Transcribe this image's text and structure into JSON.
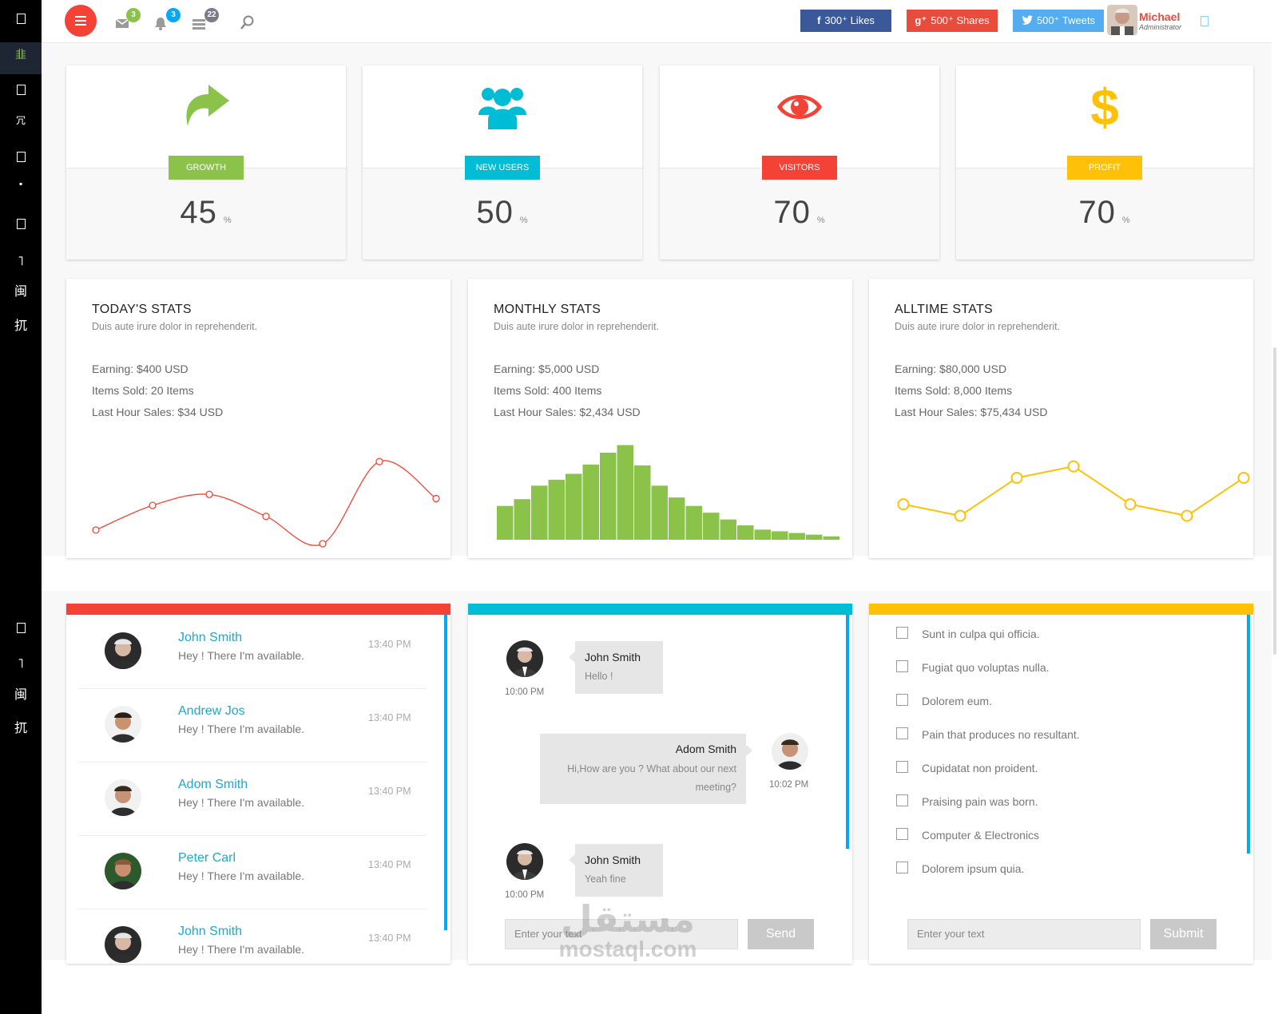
{
  "sidebar": {
    "items": [
      {
        "icon": "square-icon",
        "glyph": ""
      },
      {
        "icon": "dashboard-icon",
        "glyph": "韭"
      },
      {
        "icon": "square-icon",
        "glyph": ""
      },
      {
        "icon": "glyph-icon",
        "glyph": "冗"
      },
      {
        "icon": "square-icon",
        "glyph": ""
      },
      {
        "icon": "glyph-icon",
        "glyph": "᠎"
      },
      {
        "icon": "square-icon",
        "glyph": ""
      },
      {
        "icon": "glyph-icon",
        "glyph": "˥"
      },
      {
        "icon": "glyph-icon",
        "glyph": "闽"
      },
      {
        "icon": "glyph-icon",
        "glyph": "扤"
      },
      {
        "icon": "square-icon",
        "glyph": ""
      },
      {
        "icon": "glyph-icon",
        "glyph": "˥"
      },
      {
        "icon": "glyph-icon",
        "glyph": "闽"
      },
      {
        "icon": "glyph-icon",
        "glyph": "扤"
      }
    ]
  },
  "header": {
    "badges": {
      "mail": "3",
      "bell": "3",
      "tasks": "22"
    },
    "social": {
      "facebook": {
        "icon": "f",
        "label": "300⁺ Likes",
        "color": "#3b5998"
      },
      "google": {
        "icon": "g⁺",
        "label": "500⁺ Shares",
        "color": "#e74c3c"
      },
      "twitter": {
        "icon": "",
        "label": "500⁺ Tweets",
        "color": "#55acee"
      }
    },
    "user": {
      "name": "Michael",
      "role": "Administrator"
    }
  },
  "tiles": [
    {
      "label": "GROWTH",
      "value": "45",
      "unit": "%",
      "color": "#8bc34a",
      "icon": "share-arrow-icon"
    },
    {
      "label": "NEW USERS",
      "value": "50",
      "unit": "%",
      "color": "#00bcd4",
      "icon": "users-icon"
    },
    {
      "label": "VISITORS",
      "value": "70",
      "unit": "%",
      "color": "#f44336",
      "icon": "eye-icon"
    },
    {
      "label": "PROFIT",
      "value": "70",
      "unit": "%",
      "color": "#ffc107",
      "icon": "dollar-icon"
    }
  ],
  "stats": [
    {
      "title": "TODAY'S STATS",
      "subtitle": "Duis aute irure dolor in reprehenderit.",
      "earning": "Earning: $400 USD",
      "items": "Items Sold: 20 Items",
      "last_hour": "Last Hour Sales: $34 USD"
    },
    {
      "title": "MONTHLY STATS",
      "subtitle": "Duis aute irure dolor in reprehenderit.",
      "earning": "Earning: $5,000 USD",
      "items": "Items Sold: 400 Items",
      "last_hour": "Last Hour Sales: $2,434 USD"
    },
    {
      "title": "ALLTIME STATS",
      "subtitle": "Duis aute irure dolor in reprehenderit.",
      "earning": "Earning: $80,000 USD",
      "items": "Items Sold: 8,000 Items",
      "last_hour": "Last Hour Sales: $75,434 USD"
    }
  ],
  "chart_data": [
    {
      "type": "line",
      "color": "#f44336",
      "smooth": true,
      "x": [
        1,
        2,
        3,
        4,
        5,
        6,
        7
      ],
      "values": [
        10,
        28,
        36,
        20,
        0,
        60,
        33
      ],
      "ylim": [
        0,
        70
      ]
    },
    {
      "type": "bar",
      "color": "#8bc34a",
      "values": [
        40,
        48,
        64,
        71,
        78,
        89,
        103,
        112,
        88,
        64,
        50,
        40,
        32,
        24,
        17,
        12,
        10,
        8,
        6,
        4
      ],
      "ylim": [
        0,
        120
      ]
    },
    {
      "type": "line",
      "color": "#ffc107",
      "smooth": false,
      "x": [
        1,
        2,
        3,
        4,
        5,
        6,
        7
      ],
      "values": [
        10,
        0,
        33,
        43,
        10,
        0,
        33
      ],
      "ylim": [
        0,
        50
      ]
    }
  ],
  "panels": {
    "colors": {
      "red": "#f44336",
      "cyan": "#00bcd4",
      "yellow": "#ffc107",
      "scroll": "#03a9f4"
    },
    "contacts": [
      {
        "name": "John Smith",
        "message": "Hey ! There I'm available.",
        "time": "13:40 PM"
      },
      {
        "name": "Andrew Jos",
        "message": "Hey ! There I'm available.",
        "time": "13:40 PM"
      },
      {
        "name": "Adom Smith",
        "message": "Hey ! There I'm available.",
        "time": "13:40 PM"
      },
      {
        "name": "Peter Carl",
        "message": "Hey ! There I'm available.",
        "time": "13:40 PM"
      },
      {
        "name": "John Smith",
        "message": "Hey ! There I'm available.",
        "time": "13:40 PM"
      }
    ],
    "chat": {
      "messages": [
        {
          "name": "John Smith",
          "text": "Hello !",
          "time": "10:00 PM"
        },
        {
          "name": "Adom Smith",
          "text": "Hi,How are you ? What about our next meeting?",
          "time": "10:02 PM"
        },
        {
          "name": "John Smith",
          "text": "Yeah fine",
          "time": "10:00 PM"
        }
      ],
      "placeholder": "Enter your text",
      "send": "Send"
    },
    "todo": {
      "items": [
        "Sunt in culpa qui officia.",
        "Fugiat quo voluptas nulla.",
        "Dolorem eum.",
        "Pain that produces no resultant.",
        "Cupidatat non proident.",
        "Praising pain was born.",
        "Computer & Electronics",
        "Dolorem ipsum quia."
      ],
      "placeholder": "Enter your text",
      "submit": "Submit"
    }
  },
  "watermark": {
    "arabic": "مستقل",
    "latin": "mostaql.com"
  }
}
